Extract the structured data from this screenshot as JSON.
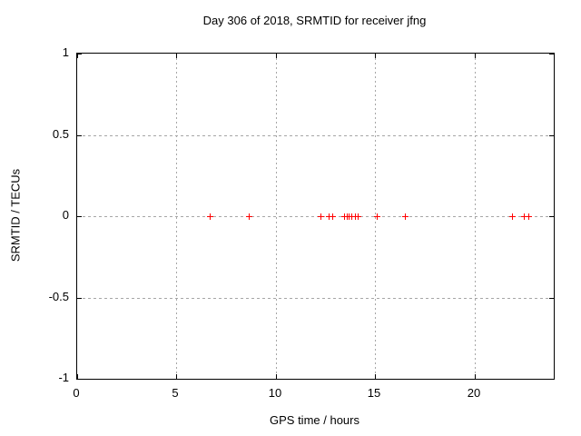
{
  "page": {
    "background_color": "#ffffff"
  },
  "chart_data": {
    "type": "scatter",
    "title": "Day 306 of 2018, SRMTID for receiver jfng",
    "xlabel": "GPS time / hours",
    "ylabel": "SRMTID / TECUs",
    "xlim": [
      0,
      24
    ],
    "ylim": [
      -1,
      1
    ],
    "x_ticks": [
      0,
      5,
      10,
      15,
      20
    ],
    "x_tick_labels": [
      "0",
      "5",
      "10",
      "15",
      "20"
    ],
    "y_ticks": [
      1,
      0.5,
      0,
      -0.5,
      -1
    ],
    "y_tick_labels": [
      "1",
      "0.5",
      "0",
      "-0.5",
      "-1"
    ],
    "grid": true,
    "legend": "none",
    "marker": "plus",
    "marker_color": "#ff0000",
    "axis_color": "#000000",
    "grid_color": "#a6a6a6",
    "series": [
      {
        "name": "SRMTID",
        "x": [
          6.67,
          8.62,
          12.27,
          12.64,
          12.85,
          13.44,
          13.58,
          13.69,
          13.81,
          13.99,
          14.13,
          15.09,
          16.5,
          21.9,
          22.51,
          22.72
        ],
        "y": [
          0,
          0,
          0,
          0,
          0,
          0,
          0,
          0,
          0,
          0,
          0,
          0,
          0,
          0,
          0,
          0
        ]
      }
    ]
  }
}
